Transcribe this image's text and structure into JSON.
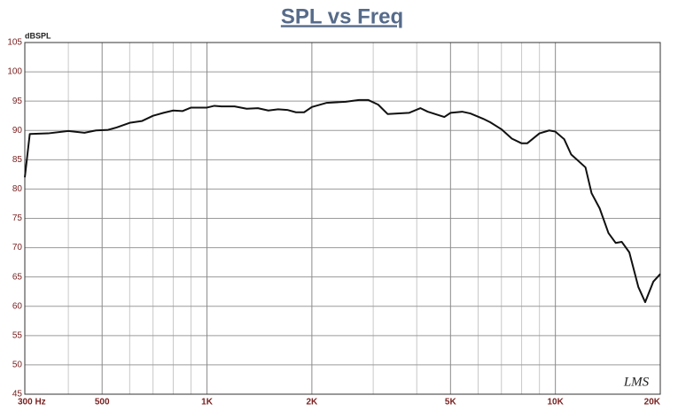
{
  "chart_data": {
    "type": "line",
    "title": "SPL vs Freq",
    "y_label": "dBSPL",
    "logo": "LMS",
    "x_log": true,
    "grid": true,
    "xlim": [
      300,
      20000
    ],
    "ylim": [
      45,
      105
    ],
    "xticks": [
      {
        "value": 300,
        "label": "300  Hz"
      },
      500,
      {
        "value": 1000,
        "label": "1K"
      },
      {
        "value": 2000,
        "label": "2K"
      },
      {
        "value": 5000,
        "label": "5K"
      },
      {
        "value": 10000,
        "label": "10K"
      },
      {
        "value": 20000,
        "label": "20K"
      }
    ],
    "x_minor_ticks": [
      400,
      600,
      700,
      800,
      900,
      3000,
      4000,
      6000,
      7000,
      8000,
      9000
    ],
    "yticks": [
      45,
      50,
      55,
      60,
      65,
      70,
      75,
      80,
      85,
      90,
      95,
      100,
      105
    ],
    "x": [
      300,
      310,
      350,
      400,
      445,
      480,
      520,
      550,
      600,
      650,
      700,
      750,
      800,
      850,
      900,
      1000,
      1050,
      1100,
      1200,
      1300,
      1400,
      1500,
      1600,
      1700,
      1800,
      1900,
      2000,
      2200,
      2500,
      2730,
      2900,
      3100,
      3300,
      3800,
      4100,
      4300,
      4800,
      5000,
      5400,
      5700,
      6200,
      6500,
      7000,
      7500,
      8000,
      8300,
      9000,
      9600,
      10000,
      10600,
      11100,
      12200,
      12700,
      13400,
      14200,
      14900,
      15500,
      16300,
      17300,
      18100,
      19100,
      20000
    ],
    "series": [
      {
        "name": "SPL",
        "color": "#111111",
        "values": [
          82,
          89.4,
          89.5,
          89.9,
          89.6,
          90,
          90.1,
          90.5,
          91.3,
          91.6,
          92.5,
          93,
          93.4,
          93.3,
          93.9,
          93.9,
          94.2,
          94.1,
          94.1,
          93.7,
          93.8,
          93.4,
          93.6,
          93.5,
          93.1,
          93.1,
          94,
          94.7,
          94.9,
          95.2,
          95.2,
          94.4,
          92.8,
          93,
          93.8,
          93.2,
          92.3,
          93,
          93.2,
          92.9,
          92,
          91.4,
          90.2,
          88.6,
          87.8,
          87.8,
          89.5,
          90,
          89.8,
          88.5,
          85.9,
          83.7,
          79.3,
          76.7,
          72.5,
          70.8,
          71,
          69.2,
          63.3,
          60.7,
          64.2,
          65.5
        ]
      }
    ]
  }
}
